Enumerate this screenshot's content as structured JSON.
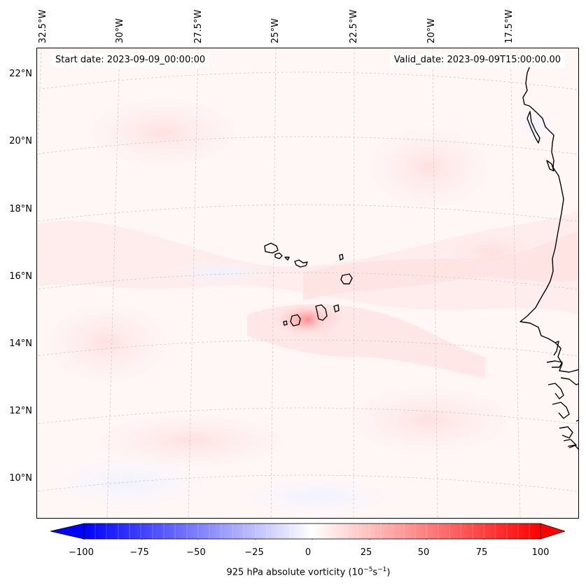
{
  "map": {
    "title_left": "Start date: 2023-09-09_00:00:00",
    "title_right": "Valid_date: 2023-09-09T15:00:00.00",
    "projection": "lambert-conformal",
    "extent": {
      "lon_min": -33.0,
      "lon_max": -15.5,
      "lat_min": 9.0,
      "lat_max": 22.5
    },
    "field": "925 hPa absolute vorticity",
    "longitude_labels": [
      "32.5°W",
      "30°W",
      "27.5°W",
      "25°W",
      "22.5°W",
      "20°W",
      "17.5°W"
    ],
    "latitude_labels": [
      "22°N",
      "20°N",
      "18°N",
      "16°N",
      "14°N",
      "12°N",
      "10°N"
    ],
    "gridlines": true,
    "features": [
      "Cape Verde islands",
      "West African coastline (Mauritania, Senegal, Gambia, Guinea-Bissau)"
    ],
    "vorticity_max_location": "near Fogo / Santiago, Cape Verde"
  },
  "colorbar": {
    "label_text": "925 hPa absolute vorticity (10",
    "label_exp1": "−5",
    "label_mid": "s",
    "label_exp2": "−1",
    "label_end": ")",
    "ticks": [
      "−100",
      "−75",
      "−50",
      "−25",
      "0",
      "25",
      "50",
      "75",
      "100"
    ],
    "min": -100,
    "max": 100,
    "colormap": "bwr",
    "extend": "both",
    "color_low": "#0000ff",
    "color_mid": "#ffffff",
    "color_high": "#ff0000"
  }
}
